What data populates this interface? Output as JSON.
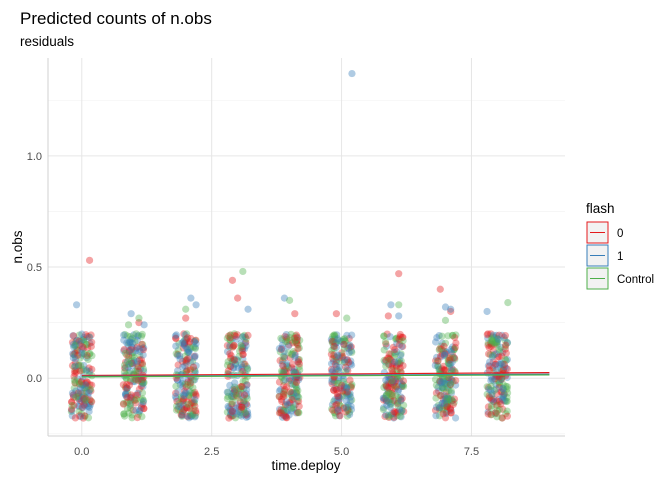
{
  "chart_data": {
    "type": "scatter",
    "title": "Predicted counts of n.obs",
    "subtitle": "residuals",
    "xlabel": "time.deploy",
    "ylabel": "n.obs",
    "xlim": [
      -0.65,
      9.3
    ],
    "ylim": [
      -0.26,
      1.44
    ],
    "x_ticks": [
      0.0,
      2.5,
      5.0,
      7.5
    ],
    "x_tick_labels": [
      "0.0",
      "2.5",
      "5.0",
      "7.5"
    ],
    "y_ticks": [
      0.0,
      0.5,
      1.0
    ],
    "y_tick_labels": [
      "0.0",
      "0.5",
      "1.0"
    ],
    "grid": true,
    "legend": {
      "title": "flash",
      "position": "right",
      "entries": [
        {
          "label": "0",
          "color": "#e41a1c"
        },
        {
          "label": "1",
          "color": "#377eb8"
        },
        {
          "label": "Control",
          "color": "#4daf4a"
        }
      ]
    },
    "series": [
      {
        "name": "0",
        "color": "#e41a1c",
        "fit_line": [
          [
            0.0,
            0.012
          ],
          [
            9.0,
            0.025
          ]
        ],
        "outliers": [
          [
            0.15,
            0.53
          ],
          [
            2.0,
            0.27
          ],
          [
            2.9,
            0.44
          ],
          [
            3.0,
            0.36
          ],
          [
            4.1,
            0.29
          ],
          [
            4.9,
            0.29
          ],
          [
            6.1,
            0.47
          ],
          [
            6.9,
            0.4
          ],
          [
            7.1,
            0.3
          ],
          [
            1.1,
            0.25
          ],
          [
            5.9,
            0.28
          ]
        ]
      },
      {
        "name": "1",
        "color": "#377eb8",
        "fit_line": [
          [
            0.0,
            0.008
          ],
          [
            9.0,
            0.018
          ]
        ],
        "outliers": [
          [
            -0.1,
            0.33
          ],
          [
            0.95,
            0.29
          ],
          [
            2.1,
            0.36
          ],
          [
            2.2,
            0.33
          ],
          [
            3.2,
            0.31
          ],
          [
            3.9,
            0.36
          ],
          [
            5.2,
            1.37
          ],
          [
            5.95,
            0.33
          ],
          [
            6.1,
            0.28
          ],
          [
            7.0,
            0.32
          ],
          [
            7.1,
            0.31
          ],
          [
            7.8,
            0.3
          ],
          [
            1.2,
            0.24
          ]
        ]
      },
      {
        "name": "Control",
        "color": "#4daf4a",
        "fit_line": [
          [
            0.0,
            0.006
          ],
          [
            9.0,
            0.015
          ]
        ],
        "outliers": [
          [
            1.1,
            0.27
          ],
          [
            2.0,
            0.31
          ],
          [
            3.1,
            0.48
          ],
          [
            4.0,
            0.35
          ],
          [
            5.1,
            0.27
          ],
          [
            6.1,
            0.33
          ],
          [
            8.2,
            0.34
          ],
          [
            0.9,
            0.24
          ],
          [
            7.0,
            0.26
          ]
        ]
      }
    ],
    "clusters": {
      "x_centers": [
        0,
        1,
        2,
        3,
        4,
        5,
        6,
        7,
        8
      ],
      "x_jitter": 0.2,
      "y_range": [
        -0.18,
        0.2
      ]
    }
  }
}
